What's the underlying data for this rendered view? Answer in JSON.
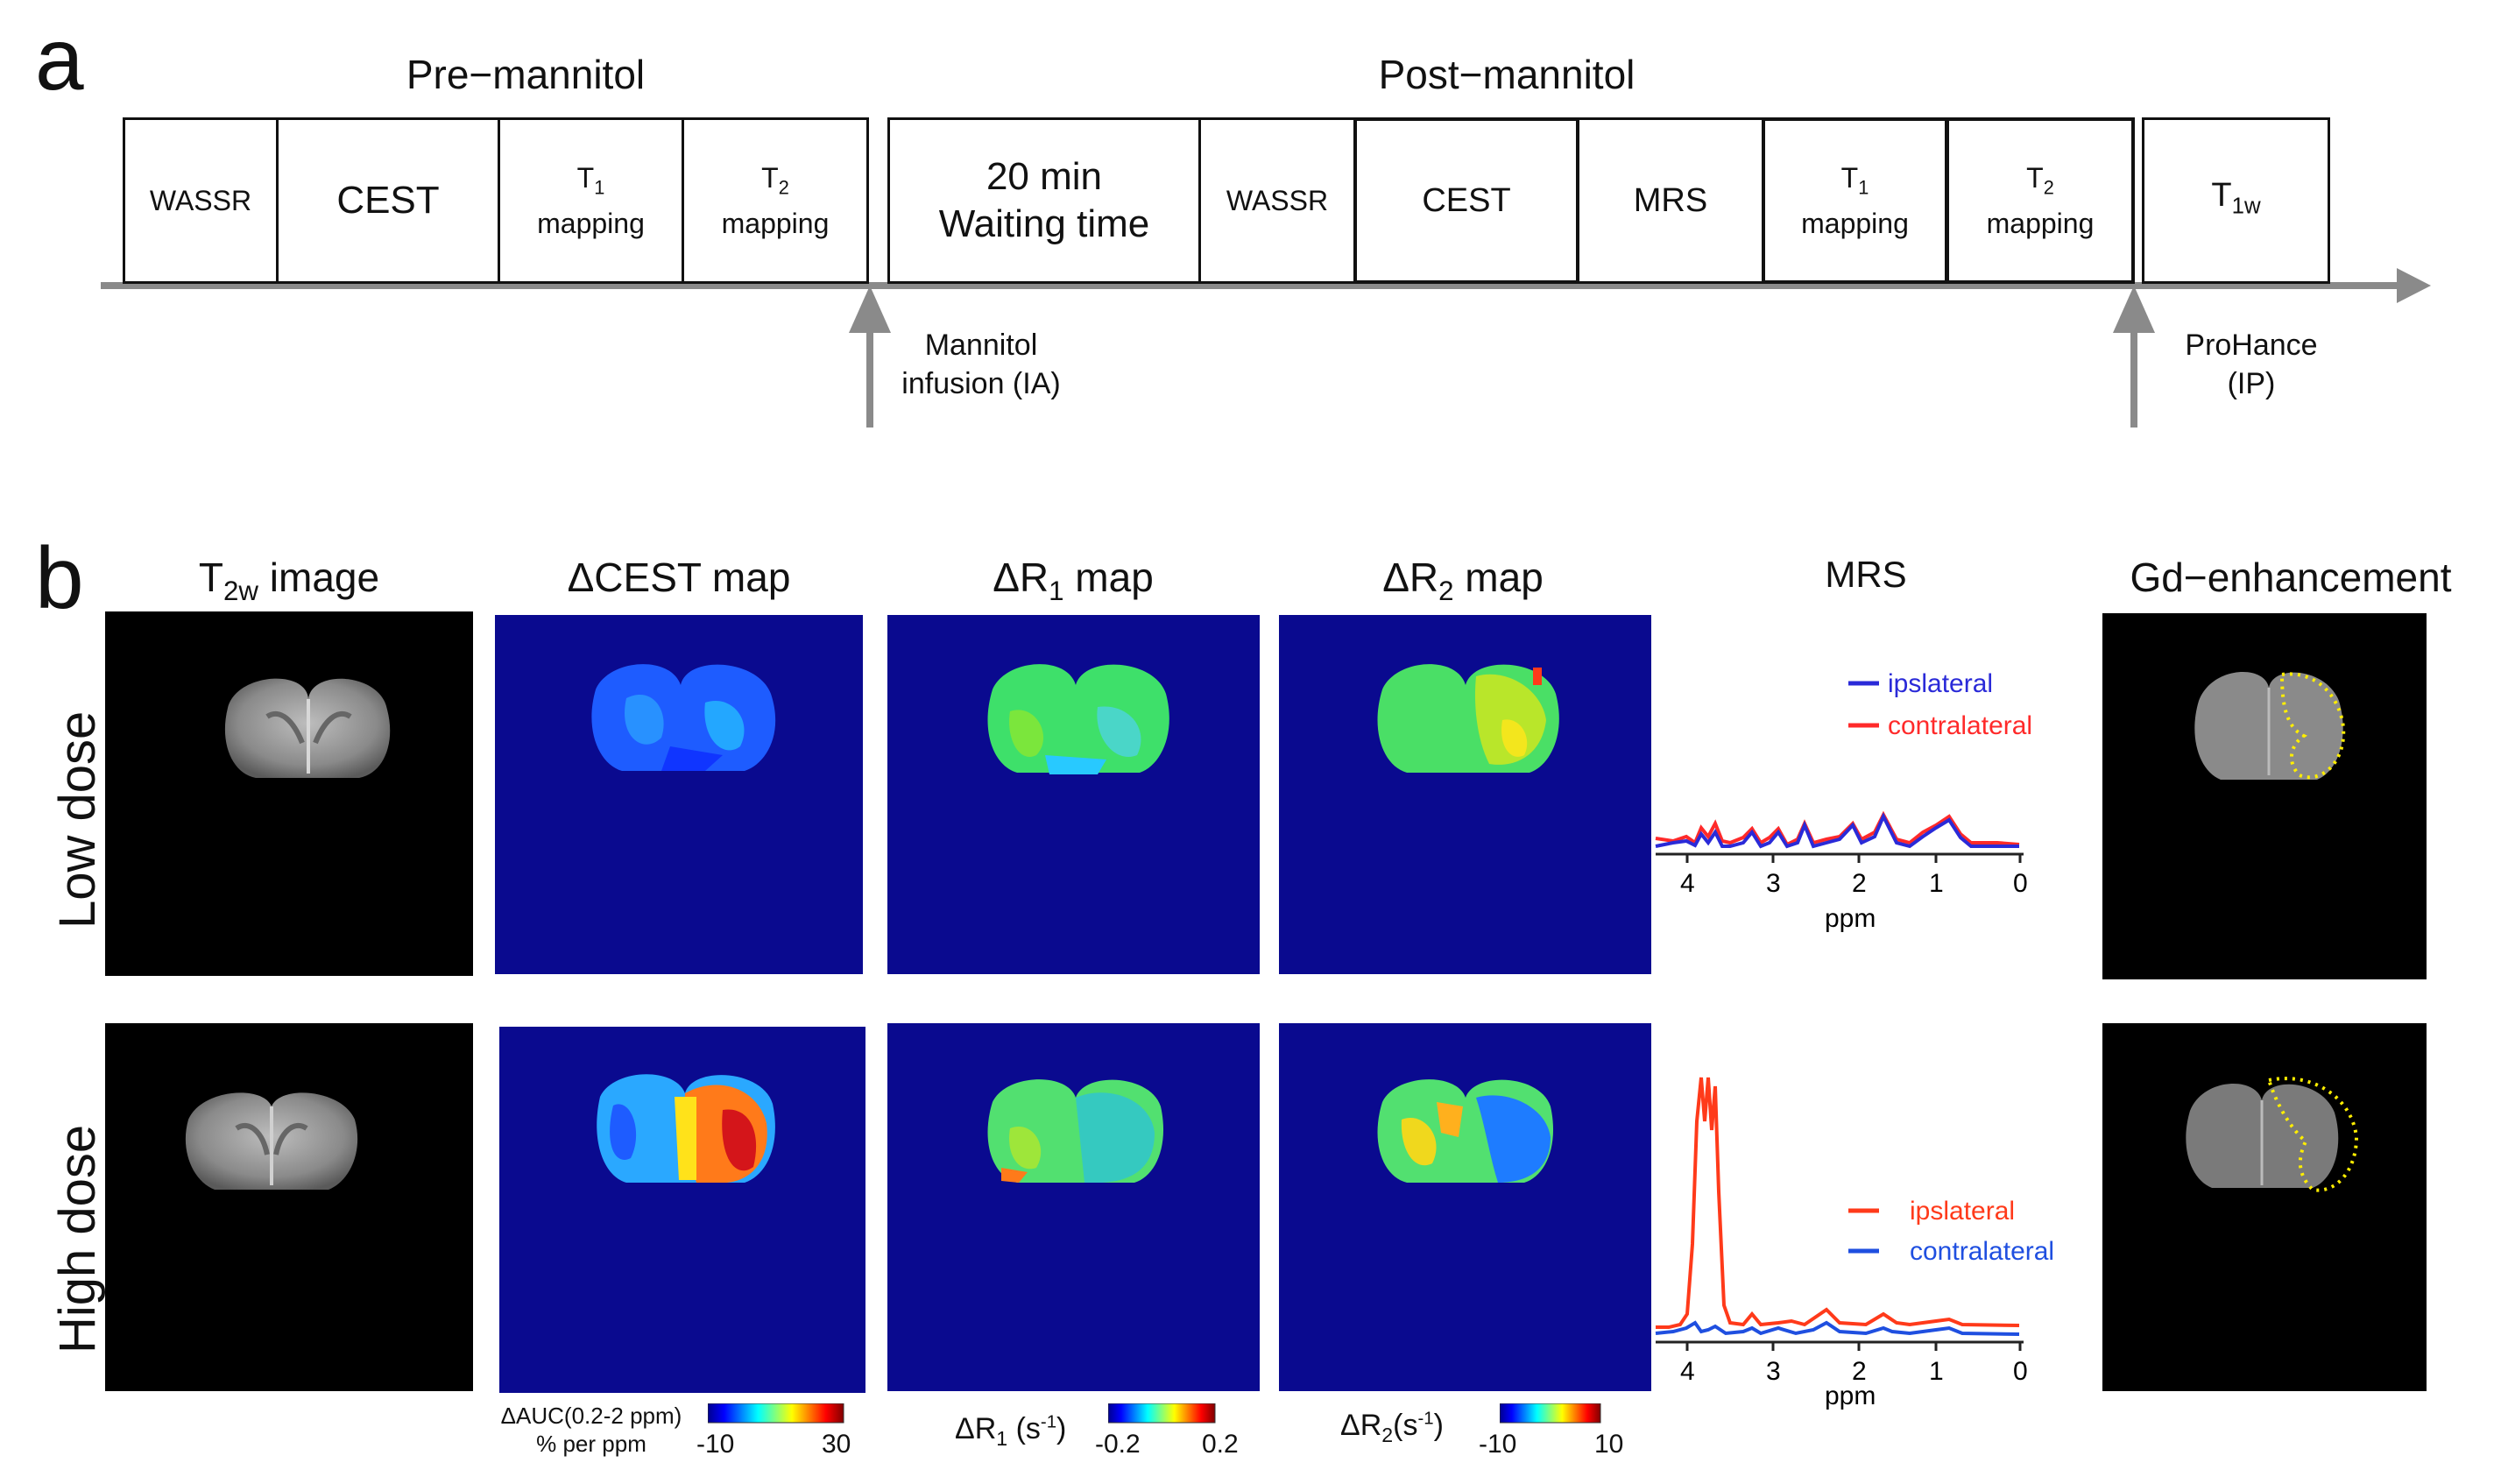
{
  "panels": {
    "a": "a",
    "b": "b"
  },
  "timeline": {
    "pre_label": "Pre−mannitol",
    "post_label": "Post−mannitol",
    "boxes": {
      "wassr1": "WASSR",
      "cest1": "CEST",
      "t1map1_main": "T",
      "t1map1_sub": "1",
      "t1map1_word": "mapping",
      "t2map1_main": "T",
      "t2map1_sub": "2",
      "t2map1_word": "mapping",
      "wait_line1": "20 min",
      "wait_line2": "Waiting time",
      "wassr2": "WASSR",
      "cest2": "CEST",
      "mrs": "MRS",
      "t1map2_main": "T",
      "t1map2_sub": "1",
      "t1map2_word": "mapping",
      "t2map2_main": "T",
      "t2map2_sub": "2",
      "t2map2_word": "mapping",
      "t1w_main": "T",
      "t1w_sub": "1w"
    },
    "arrows": {
      "mannitol_line1": "Mannitol",
      "mannitol_line2": "infusion (IA)",
      "prohance_line1": "ProHance",
      "prohance_line2": "(IP)"
    }
  },
  "columns": {
    "t2w_main": "T",
    "t2w_sub": "2w",
    "t2w_rest": " image",
    "cest": "ΔCEST map",
    "r1_main": "ΔR",
    "r1_sub": "1",
    "r1_rest": " map",
    "r2_main": "ΔR",
    "r2_sub": "2",
    "r2_rest": " map",
    "mrs": "MRS",
    "gd": "Gd−enhancement"
  },
  "rows": {
    "low": "Low dose",
    "high": "High dose"
  },
  "mrs": {
    "low_legend": [
      "ipslateral",
      "contralateral"
    ],
    "high_legend": [
      "ipslateral",
      "contralateral"
    ],
    "xlabel": "ppm",
    "ticks": [
      "4",
      "3",
      "2",
      "1",
      "0"
    ]
  },
  "colorbars": {
    "cest_label1": "ΔAUC(0.2-2 ppm)",
    "cest_label2": "% per ppm",
    "cest_min": "-10",
    "cest_max": "30",
    "r1_label": "ΔR",
    "r1_sub": "1",
    "r1_unit": " (s",
    "r1_exp": "-1",
    "r1_close": ")",
    "r1_min": "-0.2",
    "r1_max": "0.2",
    "r2_label": "ΔR",
    "r2_sub": "2",
    "r2_unit": "(s",
    "r2_exp": "-1",
    "r2_close": ")",
    "r2_min": "-10",
    "r2_max": "10"
  },
  "colors": {
    "ipsi_low": "#2a2ad8",
    "contra_low": "#ff2a2a",
    "ipsi_high": "#ff3a1a",
    "contra_high": "#1f4fe0",
    "roi": "#ffee00",
    "map_bg": "#0a0a8f"
  }
}
